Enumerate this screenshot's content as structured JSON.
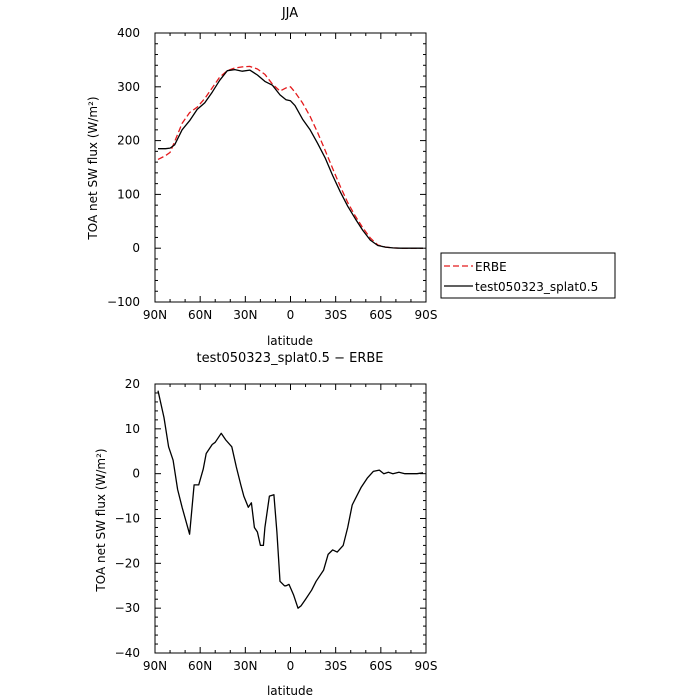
{
  "chart_data": [
    {
      "type": "line",
      "title": "JJA",
      "xlabel": "latitude",
      "ylabel": "TOA net SW flux (W/m²)",
      "xlim": [
        90,
        -90
      ],
      "ylim": [
        -100,
        400
      ],
      "x_ticks": [
        90,
        60,
        30,
        0,
        -30,
        -60,
        -90
      ],
      "x_tick_labels": [
        "90N",
        "60N",
        "30N",
        "0",
        "30S",
        "60S",
        "90S"
      ],
      "y_ticks": [
        -100,
        0,
        100,
        200,
        300,
        400
      ],
      "y_tick_labels": [
        "−100",
        "0",
        "100",
        "200",
        "300",
        "400"
      ],
      "legend_position": "outside-right",
      "series": [
        {
          "name": "ERBE",
          "color": "#e41a1c",
          "dash": "dashed",
          "x": [
            88,
            83,
            80,
            77,
            72,
            67,
            62,
            57,
            52,
            47,
            42,
            37,
            32,
            27,
            22,
            17,
            12,
            7,
            3,
            0,
            -3,
            -8,
            -13,
            -18,
            -23,
            -28,
            -33,
            -38,
            -43,
            -48,
            -53,
            -58,
            -63,
            -68,
            -73,
            -78,
            -83,
            -88
          ],
          "values": [
            165,
            172,
            178,
            198,
            232,
            252,
            262,
            278,
            298,
            318,
            330,
            335,
            337,
            338,
            333,
            323,
            305,
            292,
            298,
            300,
            290,
            270,
            245,
            215,
            182,
            148,
            115,
            85,
            60,
            38,
            19,
            6,
            2,
            0.5,
            0,
            0,
            0,
            0
          ]
        },
        {
          "name": "test050323_splat0.5",
          "color": "#000000",
          "dash": "solid",
          "x": [
            88,
            83,
            80,
            77,
            72,
            67,
            62,
            57,
            52,
            47,
            42,
            37,
            32,
            27,
            22,
            17,
            12,
            7,
            3,
            0,
            -3,
            -8,
            -13,
            -18,
            -23,
            -28,
            -33,
            -38,
            -43,
            -48,
            -53,
            -58,
            -63,
            -68,
            -73,
            -78,
            -83,
            -88
          ],
          "values": [
            185,
            185,
            186,
            192,
            220,
            237,
            258,
            270,
            290,
            312,
            330,
            332,
            329,
            331,
            322,
            310,
            303,
            285,
            276,
            274,
            265,
            240,
            220,
            195,
            168,
            135,
            105,
            78,
            55,
            33,
            15,
            5,
            2,
            0.5,
            0,
            0,
            0,
            0
          ]
        }
      ]
    },
    {
      "type": "line",
      "title": "test050323_splat0.5 − ERBE",
      "xlabel": "latitude",
      "ylabel": "TOA net SW flux (W/m²)",
      "xlim": [
        90,
        -90
      ],
      "ylim": [
        -40,
        20
      ],
      "x_ticks": [
        90,
        60,
        30,
        0,
        -30,
        -60,
        -90
      ],
      "x_tick_labels": [
        "90N",
        "60N",
        "30N",
        "0",
        "30S",
        "60S",
        "90S"
      ],
      "y_ticks": [
        -40,
        -30,
        -20,
        -10,
        0,
        10,
        20
      ],
      "y_tick_labels": [
        "−40",
        "−30",
        "−20",
        "−10",
        "0",
        "10",
        "20"
      ],
      "series": [
        {
          "color": "#000000",
          "dash": "solid",
          "x": [
            88,
            84,
            81,
            78,
            75,
            72,
            67,
            64,
            61,
            58,
            56,
            52,
            50,
            46,
            43,
            39,
            36,
            33,
            31,
            28,
            26,
            24,
            22,
            20,
            18,
            17,
            14,
            11,
            9,
            7,
            4,
            3,
            1,
            -2,
            -5,
            -7,
            -10,
            -14,
            -17,
            -22,
            -25,
            -28,
            -31,
            -35,
            -38,
            -41,
            -44,
            -47,
            -51,
            -55,
            -59,
            -62,
            -65,
            -68,
            -72,
            -76,
            -80,
            -84,
            -88
          ],
          "values": [
            18.5,
            12.5,
            6,
            3,
            -3.5,
            -7.5,
            -13.5,
            -2.5,
            -2.5,
            1,
            4.5,
            6.5,
            7,
            9,
            7.5,
            6,
            1.5,
            -2.5,
            -5,
            -7.5,
            -6.5,
            -12,
            -13,
            -16,
            -16,
            -12,
            -5,
            -4.7,
            -13,
            -24,
            -25,
            -25,
            -24.7,
            -27,
            -30,
            -29.5,
            -28,
            -26,
            -24,
            -21.5,
            -18,
            -17,
            -17.5,
            -16,
            -12,
            -7,
            -5,
            -3,
            -1,
            0.5,
            0.8,
            0,
            0.3,
            0,
            0.3,
            0,
            0,
            0,
            0.2
          ]
        }
      ]
    }
  ]
}
